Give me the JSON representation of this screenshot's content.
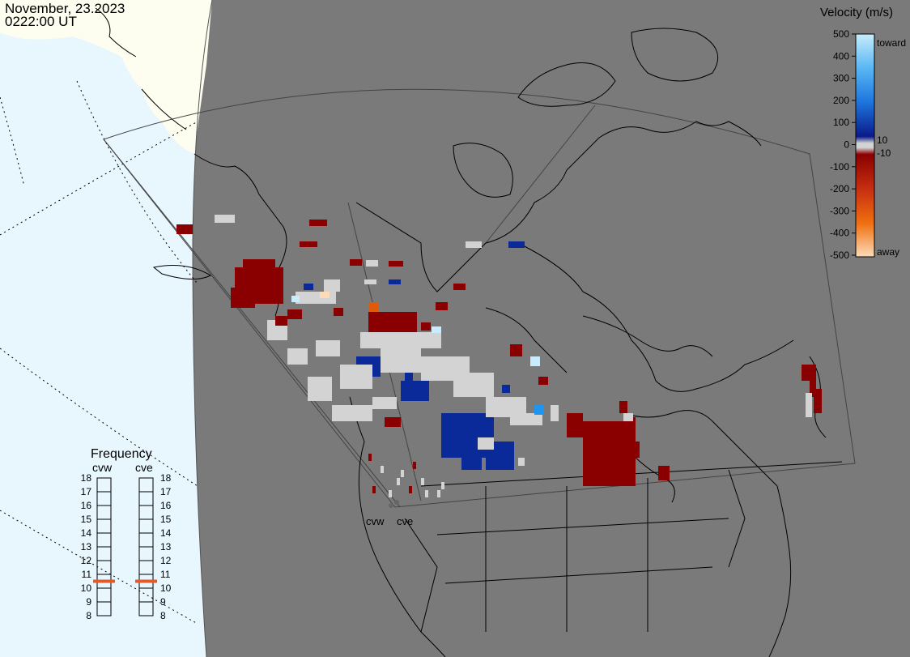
{
  "header": {
    "date": "November, 23.2023",
    "time": "0222:00 UT"
  },
  "legend": {
    "title": "Velocity (m/s)",
    "ticks": [
      "500",
      "400",
      "300",
      "200",
      "100",
      "0",
      "-100",
      "-200",
      "-300",
      "-400",
      "-500"
    ],
    "extra_pos": "10",
    "extra_neg": "-10",
    "toward": "toward",
    "away": "away",
    "colors": {
      "toward_500": "#c8ecfc",
      "toward_300": "#1e96f0",
      "toward_100": "#0a2a9a",
      "zero_band": "#d3d3d3",
      "away_100": "#8a0000",
      "away_300": "#e05a0a",
      "away_500": "#fcdcb8"
    }
  },
  "frequency": {
    "title": "Frequency",
    "radar1": "cvw",
    "radar2": "cve",
    "scale": [
      "18",
      "17",
      "16",
      "15",
      "14",
      "13",
      "12",
      "11",
      "10",
      "9",
      "8"
    ],
    "value_cvw": 11,
    "value_cve": 11,
    "marker_color": "#e25a2a"
  },
  "sites": {
    "cvw": "cvw",
    "cve": "cve"
  },
  "map": {
    "background": "#7a7a7a",
    "ocean": "#e8f6fe",
    "land": "#fdfdf0",
    "coast": "#000000"
  }
}
